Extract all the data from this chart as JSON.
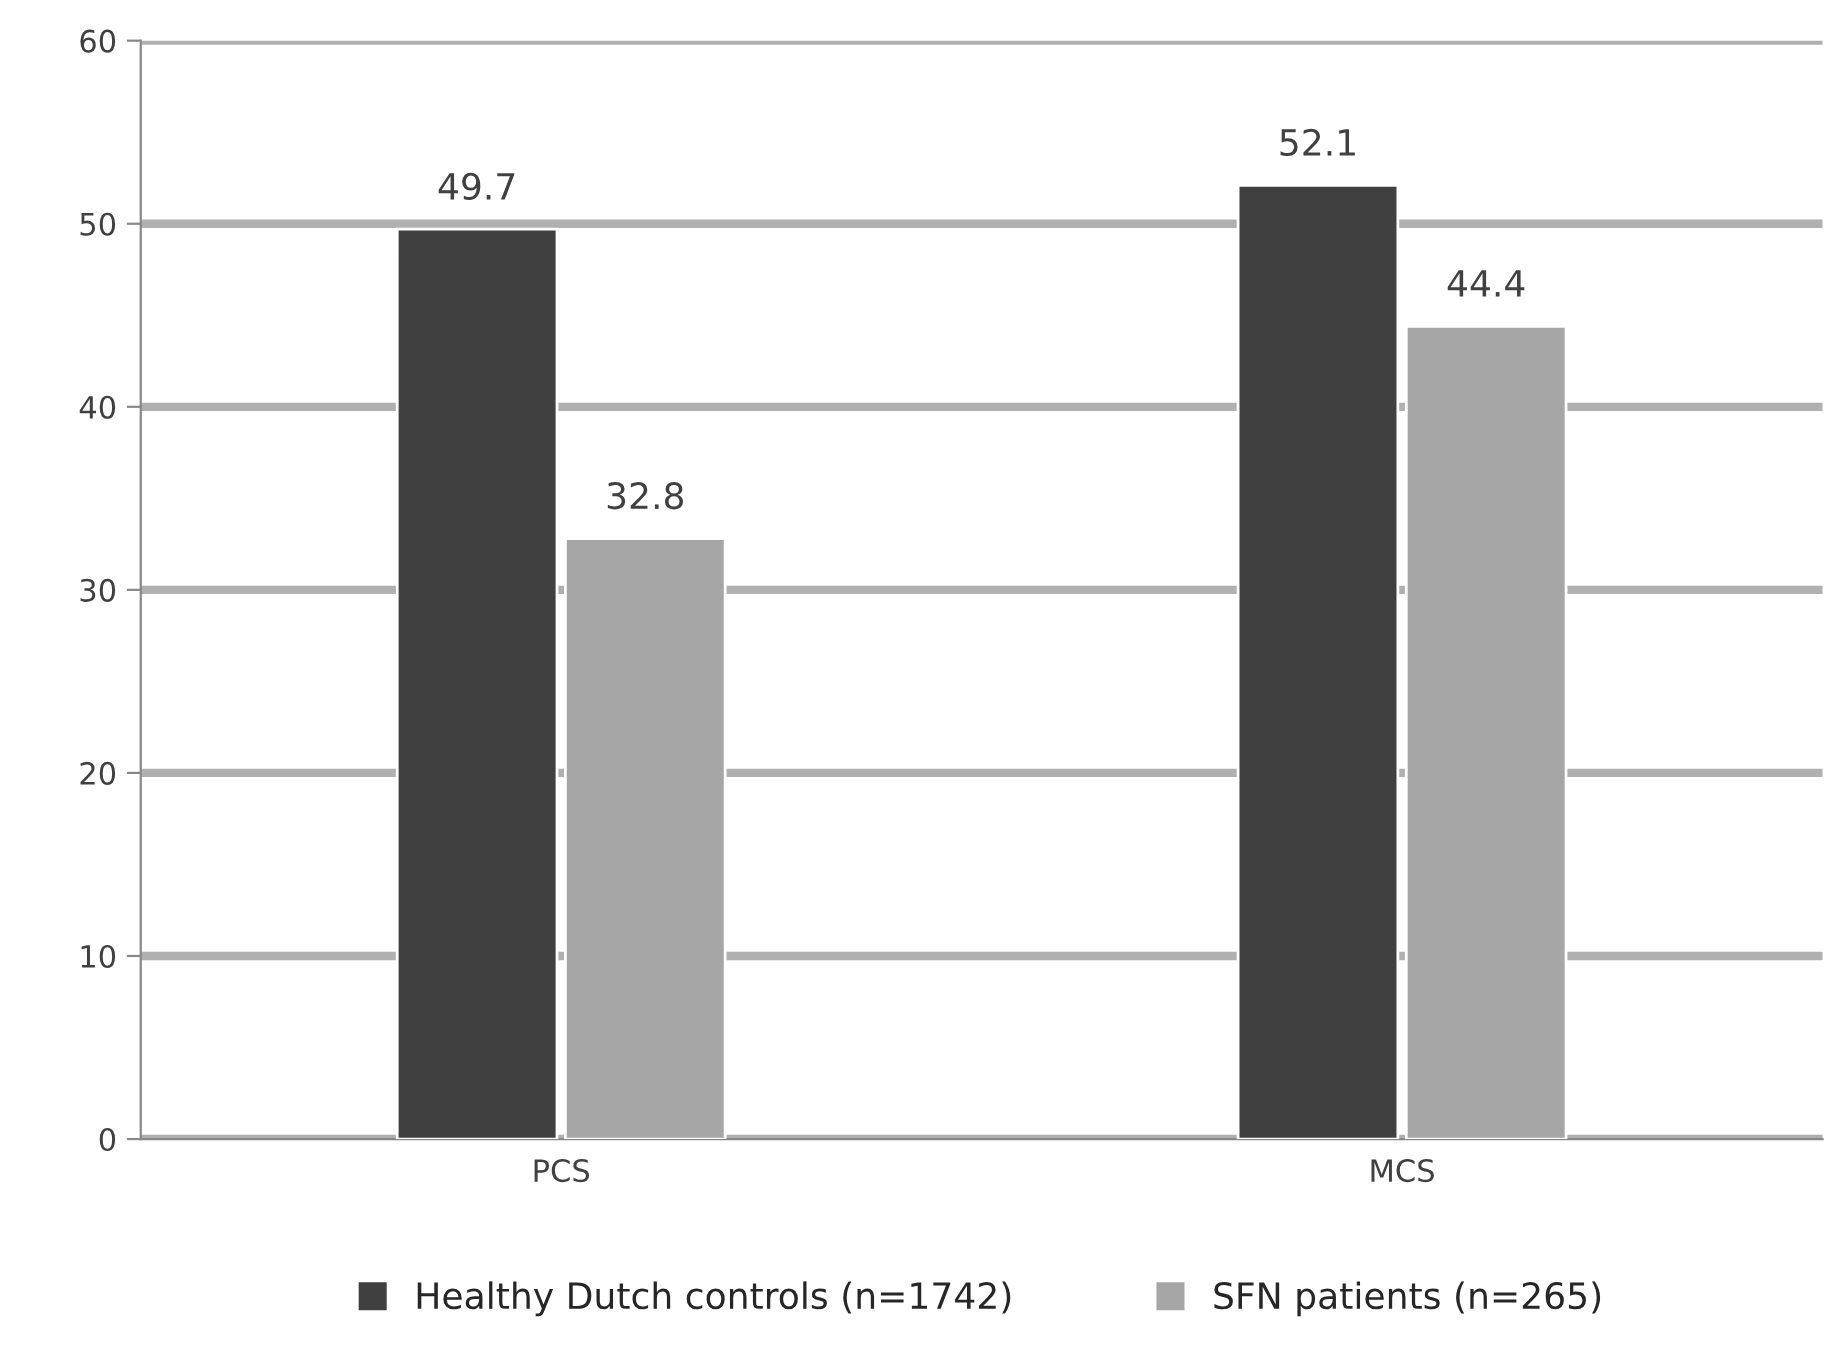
{
  "chart_data": {
    "type": "bar",
    "categories": [
      "PCS",
      "MCS"
    ],
    "series": [
      {
        "name": "Healthy Dutch controls (n=1742)",
        "color": "#404040",
        "values": [
          49.7,
          52.1
        ]
      },
      {
        "name": "SFN patients (n=265)",
        "color": "#a6a6a6",
        "values": [
          32.8,
          44.4
        ]
      }
    ],
    "ylim": [
      0,
      60
    ],
    "yticks": [
      0,
      10,
      20,
      30,
      40,
      50,
      60
    ],
    "grid": "y",
    "legend": "bottom",
    "data_labels": true
  }
}
